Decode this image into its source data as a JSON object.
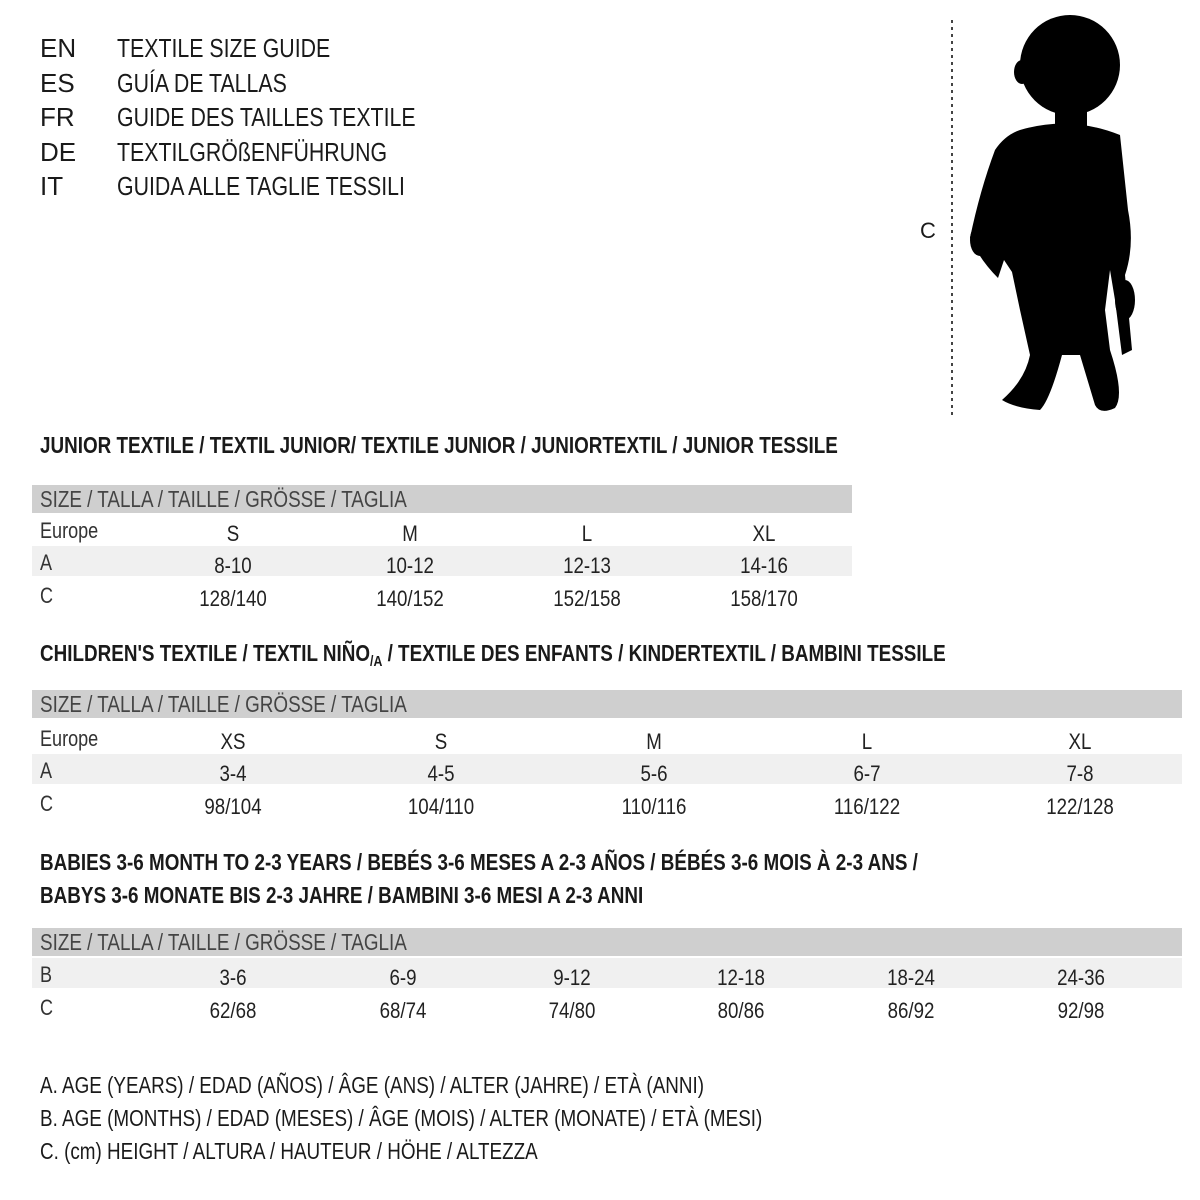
{
  "languages": [
    {
      "code": "EN",
      "title": "TEXTILE SIZE GUIDE"
    },
    {
      "code": "ES",
      "title": "GUÍA DE TALLAS"
    },
    {
      "code": "FR",
      "title": "GUIDE DES TAILLES TEXTILE"
    },
    {
      "code": "DE",
      "title": "TEXTILGRÖßENFÜHRUNG"
    },
    {
      "code": "IT",
      "title": "GUIDA ALLE TAGLIE TESSILI"
    }
  ],
  "figure": {
    "measure_label": "C",
    "icon": "child-silhouette-icon"
  },
  "size_header": "SIZE / TALLA / TAILLE / GRÖSSE / TAGLIA",
  "junior": {
    "heading": "JUNIOR TEXTILE / TEXTIL JUNIOR/ TEXTILE JUNIOR / JUNIORTEXTIL / JUNIOR TESSILE",
    "rows": [
      {
        "label": "Europe",
        "values": [
          "S",
          "M",
          "L",
          "XL"
        ]
      },
      {
        "label": "A",
        "values": [
          "8-10",
          "10-12",
          "12-13",
          "14-16"
        ]
      },
      {
        "label": "C",
        "values": [
          "128/140",
          "140/152",
          "152/158",
          "158/170"
        ]
      }
    ]
  },
  "children": {
    "heading_pre": "CHILDREN'S TEXTILE / TEXTIL NIÑO",
    "heading_sub": "/A",
    "heading_post": " / TEXTILE DES ENFANTS / KINDERTEXTIL / BAMBINI TESSILE",
    "rows": [
      {
        "label": "Europe",
        "values": [
          "XS",
          "S",
          "M",
          "L",
          "XL"
        ]
      },
      {
        "label": "A",
        "values": [
          "3-4",
          "4-5",
          "5-6",
          "6-7",
          "7-8"
        ]
      },
      {
        "label": "C",
        "values": [
          "98/104",
          "104/110",
          "110/116",
          "116/122",
          "122/128"
        ]
      }
    ]
  },
  "babies": {
    "heading_line1": "BABIES 3-6 MONTH TO 2-3 YEARS / BEBÉS 3-6 MESES A 2-3 AÑOS / BÉBÉS 3-6 MOIS À 2-3 ANS /",
    "heading_line2": "BABYS 3-6 MONATE BIS 2-3 JAHRE / BAMBINI 3-6 MESI A 2-3 ANNI",
    "rows": [
      {
        "label": "B",
        "values": [
          "3-6",
          "6-9",
          "9-12",
          "12-18",
          "18-24",
          "24-36"
        ]
      },
      {
        "label": "C",
        "values": [
          "62/68",
          "68/74",
          "74/80",
          "80/86",
          "86/92",
          "92/98"
        ]
      }
    ]
  },
  "legend": [
    "A. AGE (YEARS) / EDAD (AÑOS) / ÂGE (ANS) / ALTER (JAHRE) / ETÀ (ANNI)",
    "B. AGE (MONTHS) / EDAD (MESES) / ÂGE (MOIS) / ALTER (MONATE) / ETÀ (MESI)",
    "C. (cm) HEIGHT / ALTURA / HAUTEUR / HÖHE / ALTEZZA"
  ],
  "colors": {
    "band": "#cfcfcf",
    "alt_row": "#f0f0f0",
    "text": "#1a1a1a"
  }
}
